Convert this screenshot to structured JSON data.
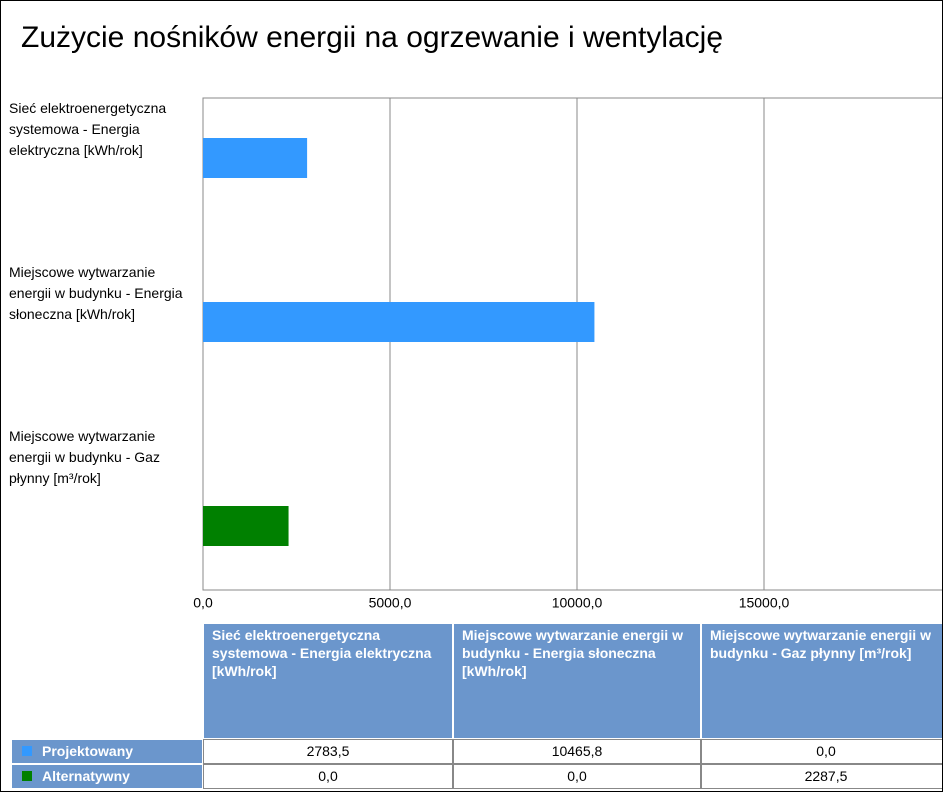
{
  "chart_data": {
    "type": "bar",
    "orientation": "horizontal",
    "title": "Zużycie nośników energii na ogrzewanie i wentylację",
    "categories": [
      "Sieć elektroenergetyczna systemowa - Energia elektryczna [kWh/rok]",
      "Miejscowe wytwarzanie energii w budynku - Energia słoneczna [kWh/rok]",
      "Miejscowe wytwarzanie energii w budynku - Gaz płynny [m³/rok]"
    ],
    "series": [
      {
        "name": "Projektowany",
        "color": "#3399ff",
        "values": [
          2783.5,
          10465.8,
          0.0
        ],
        "value_labels": [
          "2783,5",
          "10465,8",
          "0,0"
        ]
      },
      {
        "name": "Alternatywny",
        "color": "#008000",
        "values": [
          0.0,
          0.0,
          2287.5
        ],
        "value_labels": [
          "0,0",
          "0,0",
          "2287,5"
        ]
      }
    ],
    "xlim": [
      0,
      20000
    ],
    "xticks": [
      {
        "value": 0,
        "label": "0,0"
      },
      {
        "value": 5000,
        "label": "5000,0"
      },
      {
        "value": 10000,
        "label": "10000,0"
      },
      {
        "value": 15000,
        "label": "15000,0"
      }
    ],
    "grid": true
  }
}
